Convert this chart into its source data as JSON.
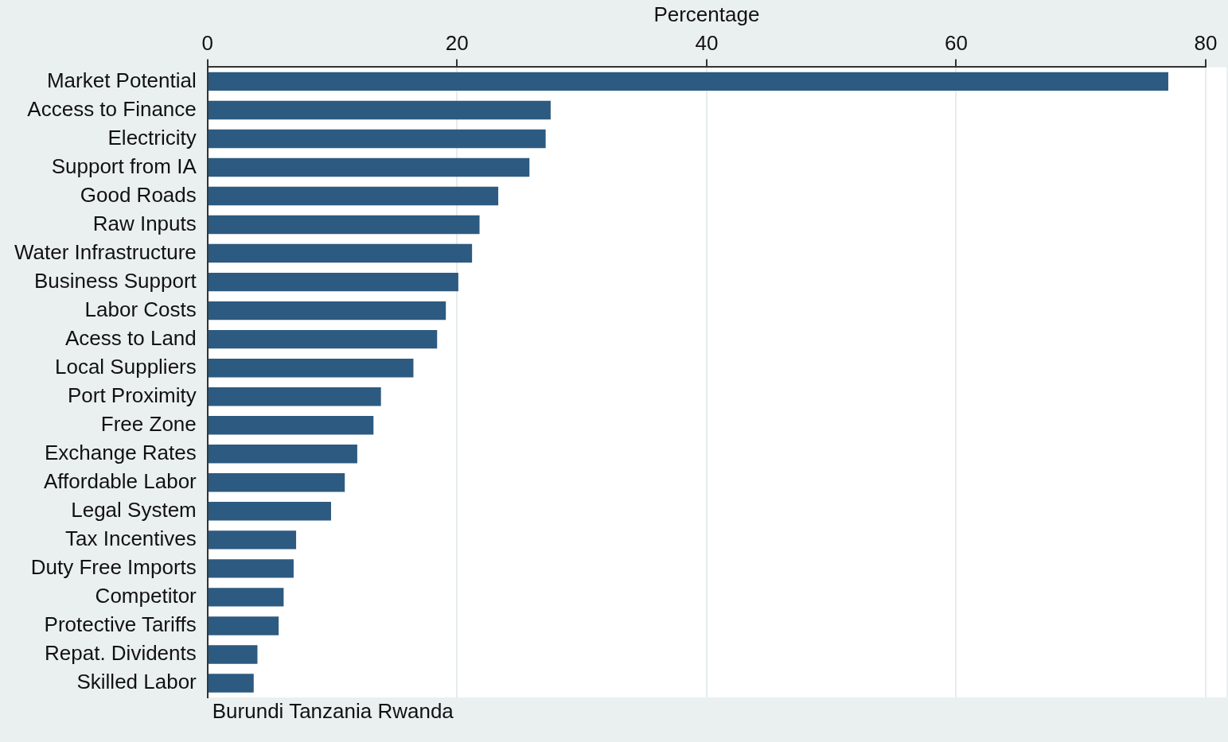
{
  "chart_data": {
    "type": "bar",
    "orientation": "horizontal",
    "xlabel": "Percentage",
    "categories": [
      "Market Potential",
      "Access to Finance",
      "Electricity",
      "Support from IA",
      "Good Roads",
      "Raw Inputs",
      "Water Infrastructure",
      "Business Support",
      "Labor Costs",
      "Acess to Land",
      "Local Suppliers",
      "Port Proximity",
      "Free Zone",
      "Exchange Rates",
      "Affordable Labor",
      "Legal System",
      "Tax Incentives",
      "Duty Free Imports",
      "Competitor",
      "Protective Tariffs",
      "Repat. Dividents",
      "Skilled Labor"
    ],
    "values": [
      77.0,
      27.5,
      27.1,
      25.8,
      23.3,
      21.8,
      21.2,
      20.1,
      19.1,
      18.4,
      16.5,
      13.9,
      13.3,
      12.0,
      11.0,
      9.9,
      7.1,
      6.9,
      6.1,
      5.7,
      4.0,
      3.7
    ],
    "color": "#2d5a80",
    "xlim": [
      0,
      80
    ],
    "xticks": [
      0,
      20,
      40,
      60,
      80
    ],
    "grid": "x",
    "legend": false,
    "annotations": [
      "Burundi Tanzania Rwanda"
    ]
  }
}
